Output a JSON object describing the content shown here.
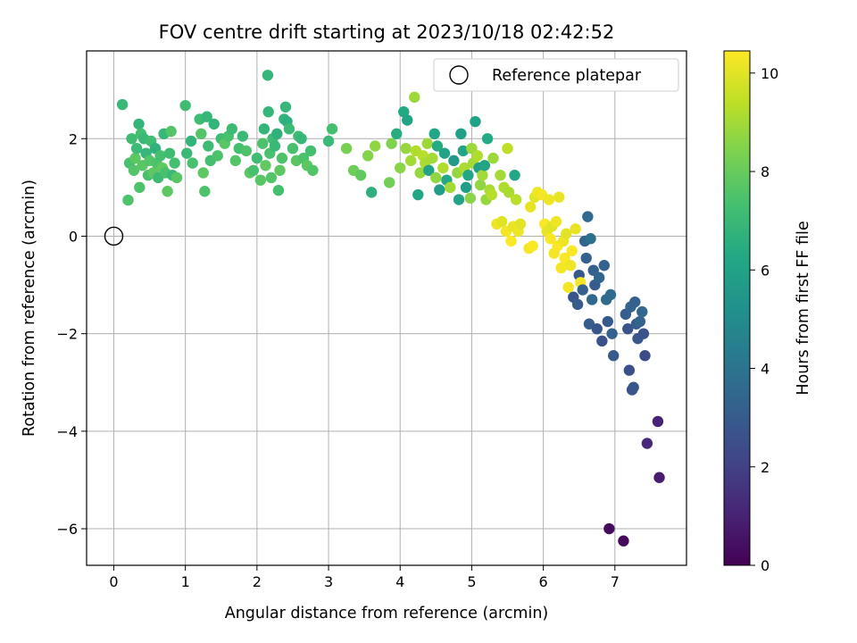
{
  "chart_data": {
    "type": "scatter",
    "title": "FOV centre drift starting at 2023/10/18 02:42:52",
    "xlabel": "Angular distance from reference (arcmin)",
    "ylabel": "Rotation from reference (arcmin)",
    "xlim": [
      -0.38,
      8.0
    ],
    "ylim": [
      -6.75,
      3.8
    ],
    "xticks": [
      0,
      1,
      2,
      3,
      4,
      5,
      6,
      7
    ],
    "yticks": [
      -6,
      -4,
      -2,
      0,
      2
    ],
    "grid": true,
    "legend": {
      "position": "top-right",
      "entries": [
        "Reference platepar"
      ]
    },
    "reference_point": {
      "x": 0,
      "y": 0
    },
    "colorbar": {
      "label": "Hours from first FF file",
      "range": [
        0,
        10.45
      ],
      "ticks": [
        0,
        2,
        4,
        6,
        8,
        10
      ],
      "colormap": "viridis"
    },
    "points": [
      [
        0.12,
        2.7,
        7.0
      ],
      [
        0.22,
        1.5,
        7.4
      ],
      [
        0.25,
        2.0,
        7.2
      ],
      [
        0.28,
        1.35,
        7.6
      ],
      [
        0.3,
        1.6,
        7.8
      ],
      [
        0.32,
        1.8,
        7.1
      ],
      [
        0.35,
        2.3,
        6.8
      ],
      [
        0.36,
        1.0,
        7.5
      ],
      [
        0.38,
        2.1,
        7.3
      ],
      [
        0.4,
        1.45,
        7.7
      ],
      [
        0.42,
        2.0,
        7.0
      ],
      [
        0.45,
        1.7,
        6.9
      ],
      [
        0.48,
        1.25,
        7.4
      ],
      [
        0.5,
        1.55,
        7.6
      ],
      [
        0.52,
        1.95,
        7.2
      ],
      [
        0.55,
        1.3,
        7.8
      ],
      [
        0.58,
        1.8,
        6.7
      ],
      [
        0.6,
        1.5,
        7.5
      ],
      [
        0.62,
        1.2,
        7.1
      ],
      [
        0.65,
        1.65,
        7.3
      ],
      [
        0.68,
        1.4,
        7.9
      ],
      [
        0.7,
        2.1,
        6.9
      ],
      [
        0.72,
        1.3,
        7.4
      ],
      [
        0.75,
        0.92,
        7.8
      ],
      [
        0.78,
        1.7,
        7.2
      ],
      [
        0.8,
        2.15,
        7.6
      ],
      [
        0.82,
        1.25,
        7.0
      ],
      [
        0.85,
        1.5,
        7.3
      ],
      [
        0.88,
        1.2,
        7.7
      ],
      [
        0.2,
        0.74,
        7.5
      ],
      [
        1.0,
        2.68,
        7.2
      ],
      [
        1.02,
        1.7,
        7.0
      ],
      [
        1.08,
        1.95,
        6.8
      ],
      [
        1.1,
        1.5,
        7.4
      ],
      [
        1.2,
        2.4,
        7.2
      ],
      [
        1.22,
        2.1,
        7.6
      ],
      [
        1.25,
        1.3,
        7.8
      ],
      [
        1.27,
        0.92,
        7.5
      ],
      [
        1.3,
        2.45,
        6.9
      ],
      [
        1.32,
        1.85,
        7.1
      ],
      [
        1.35,
        1.55,
        7.3
      ],
      [
        1.4,
        2.3,
        6.8
      ],
      [
        1.45,
        1.65,
        7.5
      ],
      [
        1.5,
        2.0,
        7.2
      ],
      [
        1.55,
        1.9,
        7.7
      ],
      [
        1.6,
        2.05,
        7.4
      ],
      [
        1.65,
        2.2,
        7.1
      ],
      [
        1.7,
        1.55,
        7.6
      ],
      [
        1.75,
        1.8,
        7.3
      ],
      [
        1.8,
        2.05,
        7.0
      ],
      [
        1.85,
        1.75,
        7.5
      ],
      [
        1.9,
        1.3,
        7.8
      ],
      [
        1.95,
        1.35,
        7.4
      ],
      [
        2.0,
        1.6,
        7.2
      ],
      [
        2.05,
        1.15,
        7.7
      ],
      [
        2.08,
        1.9,
        7.5
      ],
      [
        2.1,
        2.2,
        6.8
      ],
      [
        2.12,
        1.45,
        7.9
      ],
      [
        2.15,
        3.3,
        6.9
      ],
      [
        2.16,
        2.55,
        6.9
      ],
      [
        2.18,
        1.7,
        7.4
      ],
      [
        2.2,
        1.2,
        7.6
      ],
      [
        2.22,
        2.0,
        7.2
      ],
      [
        2.25,
        1.85,
        7.0
      ],
      [
        2.28,
        2.1,
        6.7
      ],
      [
        2.3,
        0.94,
        7.3
      ],
      [
        2.32,
        1.35,
        7.8
      ],
      [
        2.35,
        1.6,
        7.5
      ],
      [
        2.38,
        2.4,
        6.8
      ],
      [
        2.4,
        2.65,
        6.9
      ],
      [
        2.42,
        2.35,
        6.6
      ],
      [
        2.45,
        2.2,
        7.1
      ],
      [
        2.5,
        1.8,
        7.4
      ],
      [
        2.55,
        1.55,
        7.7
      ],
      [
        2.58,
        2.05,
        7.2
      ],
      [
        2.62,
        2.0,
        6.9
      ],
      [
        2.65,
        1.6,
        7.5
      ],
      [
        2.7,
        1.45,
        7.8
      ],
      [
        2.75,
        1.75,
        7.3
      ],
      [
        2.78,
        1.35,
        7.6
      ],
      [
        3.0,
        1.95,
        7.0
      ],
      [
        3.05,
        2.2,
        7.3
      ],
      [
        3.25,
        1.8,
        8.3
      ],
      [
        3.35,
        1.35,
        8.1
      ],
      [
        3.45,
        1.25,
        7.9
      ],
      [
        3.55,
        1.65,
        8.5
      ],
      [
        3.6,
        0.9,
        6.6
      ],
      [
        3.65,
        1.85,
        8.7
      ],
      [
        3.85,
        1.1,
        8.2
      ],
      [
        3.88,
        1.9,
        8.4
      ],
      [
        3.95,
        2.1,
        6.5
      ],
      [
        4.0,
        1.4,
        8.6
      ],
      [
        4.05,
        2.55,
        6.3
      ],
      [
        4.08,
        1.8,
        8.8
      ],
      [
        4.1,
        2.38,
        6.1
      ],
      [
        4.15,
        1.55,
        9.0
      ],
      [
        4.2,
        2.85,
        8.9
      ],
      [
        4.22,
        1.75,
        9.2
      ],
      [
        4.25,
        0.85,
        6.2
      ],
      [
        4.28,
        1.3,
        8.8
      ],
      [
        4.32,
        1.65,
        9.3
      ],
      [
        4.35,
        1.5,
        9.1
      ],
      [
        4.38,
        1.9,
        8.9
      ],
      [
        4.4,
        1.35,
        6.0
      ],
      [
        4.45,
        1.6,
        9.0
      ],
      [
        4.48,
        2.1,
        6.2
      ],
      [
        4.5,
        1.2,
        8.7
      ],
      [
        4.52,
        1.85,
        6.4
      ],
      [
        4.55,
        0.95,
        5.8
      ],
      [
        4.6,
        1.4,
        9.2
      ],
      [
        4.62,
        1.7,
        6.0
      ],
      [
        4.65,
        1.15,
        6.3
      ],
      [
        4.7,
        1.0,
        9.0
      ],
      [
        4.75,
        1.55,
        5.7
      ],
      [
        4.8,
        1.3,
        8.8
      ],
      [
        4.82,
        0.75,
        6.0
      ],
      [
        4.85,
        2.1,
        5.9
      ],
      [
        4.88,
        1.75,
        6.1
      ],
      [
        4.9,
        1.4,
        9.1
      ],
      [
        4.92,
        1.0,
        5.8
      ],
      [
        4.95,
        1.25,
        6.2
      ],
      [
        4.98,
        0.78,
        8.6
      ],
      [
        5.0,
        1.8,
        8.9
      ],
      [
        5.02,
        1.5,
        9.0
      ],
      [
        5.05,
        2.35,
        6.0
      ],
      [
        5.08,
        1.65,
        9.2
      ],
      [
        5.1,
        1.4,
        5.9
      ],
      [
        5.12,
        1.05,
        8.7
      ],
      [
        5.15,
        1.25,
        9.0
      ],
      [
        5.18,
        1.45,
        6.1
      ],
      [
        5.2,
        0.75,
        8.8
      ],
      [
        5.22,
        2.0,
        6.3
      ],
      [
        5.25,
        0.95,
        9.1
      ],
      [
        5.28,
        0.85,
        9.3
      ],
      [
        5.3,
        1.6,
        8.9
      ],
      [
        5.35,
        0.25,
        10.2
      ],
      [
        5.4,
        1.25,
        9.0
      ],
      [
        5.42,
        0.3,
        10.0
      ],
      [
        5.45,
        1.0,
        9.2
      ],
      [
        5.48,
        0.1,
        10.3
      ],
      [
        5.5,
        1.8,
        9.4
      ],
      [
        5.52,
        0.9,
        9.1
      ],
      [
        5.55,
        -0.1,
        10.4
      ],
      [
        5.58,
        0.2,
        10.1
      ],
      [
        5.6,
        1.25,
        6.2
      ],
      [
        5.62,
        0.75,
        9.3
      ],
      [
        5.65,
        0.1,
        10.2
      ],
      [
        5.68,
        0.25,
        10.0
      ],
      [
        5.8,
        -0.25,
        10.3
      ],
      [
        5.82,
        0.6,
        10.1
      ],
      [
        5.85,
        -0.2,
        10.4
      ],
      [
        5.88,
        0.8,
        10.0
      ],
      [
        5.92,
        0.9,
        10.2
      ],
      [
        5.98,
        0.85,
        10.3
      ],
      [
        6.02,
        0.25,
        10.4
      ],
      [
        6.05,
        0.1,
        10.1
      ],
      [
        6.08,
        0.75,
        10.2
      ],
      [
        6.1,
        -0.05,
        10.4
      ],
      [
        6.12,
        0.2,
        10.0
      ],
      [
        6.15,
        -0.35,
        10.3
      ],
      [
        6.18,
        0.3,
        10.2
      ],
      [
        6.2,
        -0.2,
        10.4
      ],
      [
        6.22,
        0.8,
        10.1
      ],
      [
        6.25,
        -0.65,
        10.3
      ],
      [
        6.28,
        -0.1,
        10.2
      ],
      [
        6.3,
        -0.45,
        10.4
      ],
      [
        6.32,
        0.05,
        10.0
      ],
      [
        6.35,
        -1.05,
        10.3
      ],
      [
        6.38,
        -0.6,
        10.2
      ],
      [
        6.4,
        -0.3,
        10.4
      ],
      [
        6.42,
        -1.25,
        2.8
      ],
      [
        6.45,
        0.15,
        10.1
      ],
      [
        6.48,
        -1.4,
        3.0
      ],
      [
        6.5,
        -0.8,
        2.9
      ],
      [
        6.52,
        -0.95,
        10.3
      ],
      [
        6.55,
        -1.1,
        3.2
      ],
      [
        6.58,
        -0.1,
        3.4
      ],
      [
        6.6,
        -0.45,
        3.3
      ],
      [
        6.62,
        0.4,
        3.6
      ],
      [
        6.64,
        -1.8,
        3.1
      ],
      [
        6.66,
        -0.05,
        3.8
      ],
      [
        6.68,
        -1.3,
        3.5
      ],
      [
        6.7,
        -0.7,
        3.2
      ],
      [
        6.72,
        -1.0,
        3.0
      ],
      [
        6.75,
        -1.9,
        2.8
      ],
      [
        6.78,
        -0.85,
        3.4
      ],
      [
        6.82,
        -2.15,
        2.6
      ],
      [
        6.85,
        -0.6,
        3.3
      ],
      [
        6.88,
        -1.3,
        3.6
      ],
      [
        6.9,
        -1.75,
        2.9
      ],
      [
        6.92,
        -6.0,
        0.3
      ],
      [
        6.94,
        -1.2,
        3.7
      ],
      [
        6.96,
        -2.0,
        3.2
      ],
      [
        6.98,
        -2.45,
        3.0
      ],
      [
        7.12,
        -6.25,
        0.2
      ],
      [
        7.15,
        -1.6,
        3.1
      ],
      [
        7.18,
        -1.9,
        2.7
      ],
      [
        7.2,
        -2.75,
        2.5
      ],
      [
        7.22,
        -1.45,
        3.4
      ],
      [
        7.24,
        -3.15,
        2.6
      ],
      [
        7.26,
        -3.1,
        2.8
      ],
      [
        7.28,
        -1.35,
        3.2
      ],
      [
        7.3,
        -1.8,
        3.0
      ],
      [
        7.32,
        -2.1,
        2.9
      ],
      [
        7.35,
        -1.75,
        3.3
      ],
      [
        7.38,
        -1.55,
        3.5
      ],
      [
        7.4,
        -2.0,
        2.7
      ],
      [
        7.42,
        -2.45,
        2.4
      ],
      [
        7.45,
        -4.25,
        1.2
      ],
      [
        7.6,
        -3.8,
        1.0
      ],
      [
        7.62,
        -4.95,
        0.8
      ]
    ]
  }
}
